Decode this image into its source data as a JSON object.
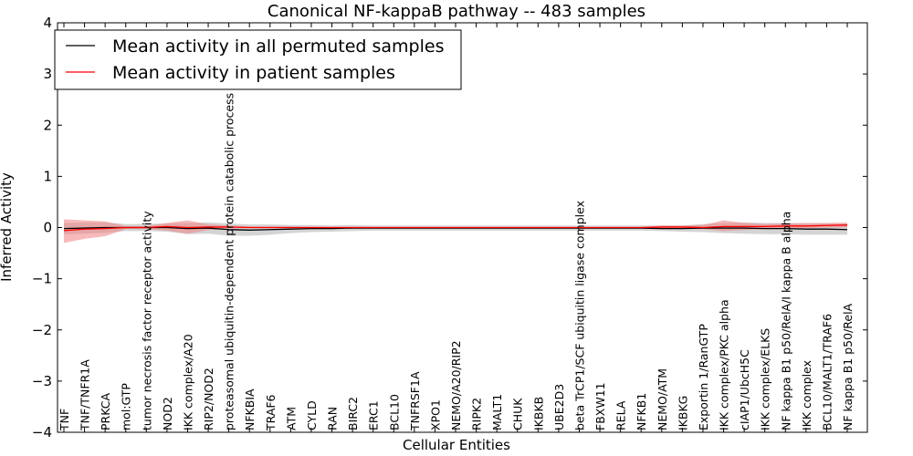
{
  "chart_data": {
    "type": "line",
    "title": "Canonical NF-kappaB pathway -- 483 samples",
    "xlabel": "Cellular Entities",
    "ylabel": "Inferred Activity",
    "ylim": [
      -4,
      4
    ],
    "yticks": [
      -4,
      -3,
      -2,
      -1,
      0,
      1,
      2,
      3,
      4
    ],
    "ytick_labels": [
      "−4",
      "−3",
      "−2",
      "−1",
      "0",
      "1",
      "2",
      "3",
      "4"
    ],
    "categories": [
      "TNF",
      "TNF/TNFR1A",
      "PRKCA",
      "mol:GTP",
      "tumor necrosis factor receptor activity",
      "NOD2",
      "IKK complex/A20",
      "RIP2/NOD2",
      "proteasomal ubiquitin-dependent protein catabolic process",
      "NFKBIA",
      "TRAF6",
      "ATM",
      "CYLD",
      "RAN",
      "BIRC2",
      "ERC1",
      "BCL10",
      "TNFRSF1A",
      "XPO1",
      "NEMO/A20/RIP2",
      "RIPK2",
      "MALT1",
      "CHUK",
      "IKBKB",
      "UBE2D3",
      "beta TrCP1/SCF ubiquitin ligase complex",
      "FBXW11",
      "RELA",
      "NFKB1",
      "NEMO/ATM",
      "IKBKG",
      "Exportin 1/RanGTP",
      "IKK complex/PKC alpha",
      "cIAP1/UbcH5C",
      "IKK complex/ELKS",
      "NF kappa B1 p50/RelA/I kappa B alpha",
      "IKK complex",
      "BCL10/MALT1/TRAF6",
      "NF kappa B1 p50/RelA"
    ],
    "series": [
      {
        "name": "Mean activity in all permuted samples",
        "color": "#000000",
        "band_color": "#a0a0a0",
        "values": [
          -0.02,
          -0.01,
          0.0,
          0.0,
          0.0,
          0.0,
          -0.02,
          -0.01,
          -0.04,
          -0.05,
          -0.04,
          -0.03,
          -0.02,
          -0.02,
          -0.01,
          -0.01,
          -0.01,
          -0.01,
          -0.01,
          -0.01,
          -0.01,
          -0.01,
          -0.01,
          -0.01,
          -0.01,
          -0.01,
          -0.01,
          -0.01,
          -0.01,
          -0.02,
          -0.02,
          -0.01,
          -0.01,
          -0.01,
          -0.02,
          -0.02,
          -0.03,
          -0.03,
          -0.04
        ],
        "lower": [
          -0.13,
          -0.12,
          -0.1,
          -0.07,
          -0.07,
          -0.08,
          -0.13,
          -0.12,
          -0.16,
          -0.16,
          -0.14,
          -0.11,
          -0.09,
          -0.08,
          -0.07,
          -0.06,
          -0.06,
          -0.06,
          -0.06,
          -0.06,
          -0.06,
          -0.06,
          -0.06,
          -0.06,
          -0.06,
          -0.06,
          -0.06,
          -0.06,
          -0.06,
          -0.07,
          -0.08,
          -0.09,
          -0.11,
          -0.12,
          -0.13,
          -0.13,
          -0.14,
          -0.14,
          -0.14
        ],
        "upper": [
          0.09,
          0.1,
          0.1,
          0.07,
          0.07,
          0.08,
          0.09,
          0.1,
          0.08,
          0.06,
          0.06,
          0.05,
          0.05,
          0.04,
          0.05,
          0.04,
          0.04,
          0.04,
          0.04,
          0.04,
          0.04,
          0.04,
          0.04,
          0.04,
          0.04,
          0.04,
          0.04,
          0.04,
          0.04,
          0.04,
          0.04,
          0.07,
          0.09,
          0.1,
          0.09,
          0.09,
          0.08,
          0.08,
          0.07
        ]
      },
      {
        "name": "Mean activity in patient samples",
        "color": "#ff0000",
        "band_color": "#f08080",
        "values": [
          -0.06,
          -0.03,
          -0.02,
          0.0,
          0.0,
          0.02,
          0.0,
          0.01,
          0.01,
          0.0,
          0.0,
          0.0,
          0.0,
          0.0,
          0.0,
          0.0,
          0.0,
          0.0,
          0.0,
          0.0,
          0.0,
          0.0,
          0.0,
          0.0,
          0.0,
          0.0,
          0.0,
          0.0,
          0.0,
          0.01,
          0.01,
          0.0,
          0.02,
          0.02,
          0.02,
          0.03,
          0.03,
          0.04,
          0.05
        ],
        "lower": [
          -0.3,
          -0.22,
          -0.17,
          -0.03,
          -0.03,
          -0.06,
          -0.12,
          -0.05,
          -0.02,
          -0.01,
          -0.01,
          -0.01,
          -0.01,
          -0.01,
          -0.01,
          -0.01,
          -0.01,
          -0.01,
          -0.01,
          -0.01,
          -0.01,
          -0.01,
          -0.01,
          -0.01,
          -0.01,
          -0.01,
          -0.01,
          -0.01,
          -0.01,
          -0.02,
          -0.02,
          -0.03,
          -0.07,
          -0.05,
          -0.03,
          -0.02,
          -0.01,
          0.0,
          0.0
        ],
        "upper": [
          0.16,
          0.14,
          0.12,
          0.03,
          0.03,
          0.09,
          0.14,
          0.06,
          0.04,
          0.02,
          0.02,
          0.02,
          0.01,
          0.01,
          0.01,
          0.01,
          0.01,
          0.01,
          0.01,
          0.01,
          0.01,
          0.01,
          0.01,
          0.01,
          0.01,
          0.01,
          0.01,
          0.01,
          0.01,
          0.04,
          0.04,
          0.05,
          0.14,
          0.09,
          0.07,
          0.08,
          0.09,
          0.09,
          0.1
        ]
      }
    ],
    "legend_position": "upper-left",
    "grid": false
  }
}
